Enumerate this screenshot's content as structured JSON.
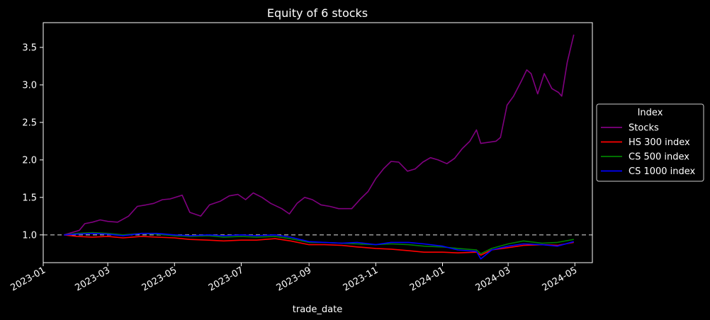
{
  "chart_data": {
    "type": "line",
    "title": "Equity of 6 stocks",
    "xlabel": "trade_date",
    "ylabel": "",
    "x_type": "date",
    "xlim": [
      "2023-01-01",
      "2024-05-17"
    ],
    "ylim": [
      0.63,
      3.83
    ],
    "x_ticks": [
      "2023-01-01",
      "2023-03-01",
      "2023-05-01",
      "2023-07-01",
      "2023-09-01",
      "2023-11-01",
      "2024-01-01",
      "2024-03-01",
      "2024-05-01"
    ],
    "x_tick_labels": [
      "2023-01",
      "2023-03",
      "2023-05",
      "2023-07",
      "2023-09",
      "2023-11",
      "2024-01",
      "2024-03",
      "2024-05"
    ],
    "y_ticks": [
      1.0,
      1.5,
      2.0,
      2.5,
      3.0,
      3.5
    ],
    "y_tick_labels": [
      "1.0",
      "1.5",
      "2.0",
      "2.5",
      "3.0",
      "3.5"
    ],
    "grid": false,
    "reference_line": {
      "y": 1.0,
      "style": "dashed",
      "color": "#999999"
    },
    "legend": {
      "title": "Index",
      "placement": "outside-right"
    },
    "series": [
      {
        "name": "Stocks",
        "color": "#800080",
        "x": [
          "2023-01-20",
          "2023-02-03",
          "2023-02-08",
          "2023-02-15",
          "2023-02-22",
          "2023-03-01",
          "2023-03-10",
          "2023-03-20",
          "2023-03-28",
          "2023-04-05",
          "2023-04-12",
          "2023-04-20",
          "2023-04-27",
          "2023-05-08",
          "2023-05-15",
          "2023-05-25",
          "2023-06-02",
          "2023-06-12",
          "2023-06-20",
          "2023-06-28",
          "2023-07-05",
          "2023-07-12",
          "2023-07-20",
          "2023-07-28",
          "2023-08-07",
          "2023-08-14",
          "2023-08-21",
          "2023-08-28",
          "2023-09-04",
          "2023-09-12",
          "2023-09-20",
          "2023-09-28",
          "2023-10-10",
          "2023-10-18",
          "2023-10-25",
          "2023-11-01",
          "2023-11-08",
          "2023-11-15",
          "2023-11-22",
          "2023-11-30",
          "2023-12-07",
          "2023-12-14",
          "2023-12-21",
          "2023-12-28",
          "2024-01-05",
          "2024-01-12",
          "2024-01-19",
          "2024-01-26",
          "2024-02-01",
          "2024-02-05",
          "2024-02-19",
          "2024-02-23",
          "2024-02-29",
          "2024-03-06",
          "2024-03-13",
          "2024-03-18",
          "2024-03-22",
          "2024-03-28",
          "2024-04-03",
          "2024-04-10",
          "2024-04-16",
          "2024-04-19",
          "2024-04-24",
          "2024-04-30"
        ],
        "y": [
          1.0,
          1.06,
          1.15,
          1.17,
          1.2,
          1.18,
          1.17,
          1.25,
          1.38,
          1.4,
          1.42,
          1.47,
          1.48,
          1.53,
          1.3,
          1.25,
          1.4,
          1.45,
          1.52,
          1.54,
          1.47,
          1.56,
          1.5,
          1.42,
          1.35,
          1.28,
          1.42,
          1.5,
          1.47,
          1.4,
          1.38,
          1.35,
          1.35,
          1.48,
          1.58,
          1.75,
          1.88,
          1.98,
          1.97,
          1.85,
          1.88,
          1.97,
          2.03,
          2.0,
          1.95,
          2.02,
          2.15,
          2.25,
          2.4,
          2.22,
          2.25,
          2.3,
          2.73,
          2.85,
          3.05,
          3.2,
          3.15,
          2.88,
          3.15,
          2.95,
          2.9,
          2.85,
          3.3,
          3.67
        ]
      },
      {
        "name": "HS 300 index",
        "color": "#ff0000",
        "x": [
          "2023-01-20",
          "2023-02-01",
          "2023-02-15",
          "2023-03-01",
          "2023-03-15",
          "2023-04-01",
          "2023-04-15",
          "2023-05-01",
          "2023-05-15",
          "2023-06-01",
          "2023-06-15",
          "2023-07-01",
          "2023-07-15",
          "2023-08-01",
          "2023-08-15",
          "2023-09-01",
          "2023-09-15",
          "2023-10-01",
          "2023-10-15",
          "2023-11-01",
          "2023-11-15",
          "2023-12-01",
          "2023-12-15",
          "2024-01-01",
          "2024-01-15",
          "2024-02-01",
          "2024-02-05",
          "2024-02-15",
          "2024-03-01",
          "2024-03-15",
          "2024-04-01",
          "2024-04-15",
          "2024-04-30"
        ],
        "y": [
          1.0,
          0.98,
          0.97,
          0.98,
          0.96,
          0.98,
          0.97,
          0.96,
          0.94,
          0.93,
          0.92,
          0.93,
          0.93,
          0.95,
          0.92,
          0.87,
          0.87,
          0.86,
          0.84,
          0.82,
          0.81,
          0.79,
          0.77,
          0.77,
          0.76,
          0.77,
          0.73,
          0.8,
          0.83,
          0.86,
          0.87,
          0.86,
          0.9
        ]
      },
      {
        "name": "CS 500 index",
        "color": "#008000",
        "x": [
          "2023-01-20",
          "2023-02-01",
          "2023-02-15",
          "2023-03-01",
          "2023-03-15",
          "2023-04-01",
          "2023-04-15",
          "2023-05-01",
          "2023-05-15",
          "2023-06-01",
          "2023-06-15",
          "2023-07-01",
          "2023-07-15",
          "2023-08-01",
          "2023-08-15",
          "2023-09-01",
          "2023-09-15",
          "2023-10-01",
          "2023-10-15",
          "2023-11-01",
          "2023-11-15",
          "2023-12-01",
          "2023-12-15",
          "2024-01-01",
          "2024-01-15",
          "2024-02-01",
          "2024-02-05",
          "2024-02-15",
          "2024-03-01",
          "2024-03-15",
          "2024-04-01",
          "2024-04-15",
          "2024-04-30"
        ],
        "y": [
          1.0,
          1.02,
          1.03,
          1.02,
          1.0,
          1.02,
          1.01,
          0.99,
          0.98,
          0.99,
          0.97,
          0.98,
          0.97,
          0.98,
          0.95,
          0.9,
          0.9,
          0.89,
          0.88,
          0.87,
          0.88,
          0.87,
          0.85,
          0.84,
          0.82,
          0.8,
          0.75,
          0.82,
          0.88,
          0.92,
          0.89,
          0.9,
          0.94
        ]
      },
      {
        "name": "CS 1000 index",
        "color": "#0000ff",
        "x": [
          "2023-01-20",
          "2023-02-01",
          "2023-02-15",
          "2023-03-01",
          "2023-03-15",
          "2023-04-01",
          "2023-04-15",
          "2023-05-01",
          "2023-05-15",
          "2023-06-01",
          "2023-06-15",
          "2023-07-01",
          "2023-07-15",
          "2023-08-01",
          "2023-08-15",
          "2023-09-01",
          "2023-09-15",
          "2023-10-01",
          "2023-10-15",
          "2023-11-01",
          "2023-11-15",
          "2023-12-01",
          "2023-12-15",
          "2024-01-01",
          "2024-01-15",
          "2024-02-01",
          "2024-02-05",
          "2024-02-15",
          "2024-03-01",
          "2024-03-15",
          "2024-04-01",
          "2024-04-15",
          "2024-04-30"
        ],
        "y": [
          1.0,
          1.01,
          1.02,
          1.01,
          0.99,
          1.02,
          1.02,
          1.0,
          0.99,
          1.0,
          0.99,
          1.0,
          0.99,
          1.0,
          0.97,
          0.91,
          0.9,
          0.89,
          0.9,
          0.87,
          0.9,
          0.9,
          0.88,
          0.85,
          0.8,
          0.78,
          0.68,
          0.8,
          0.85,
          0.88,
          0.87,
          0.85,
          0.91
        ]
      }
    ]
  }
}
